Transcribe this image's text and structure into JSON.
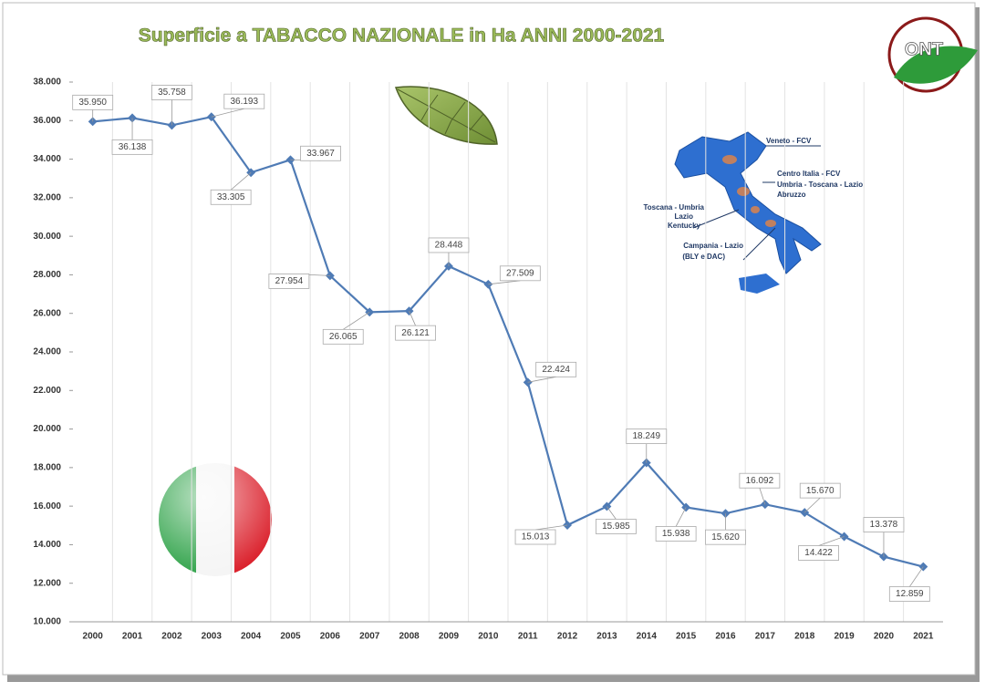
{
  "chart_data": {
    "type": "line",
    "title": "Superficie a TABACCO NAZIONALE in Ha ANNI 2000-2021",
    "categories": [
      "2000",
      "2001",
      "2002",
      "2003",
      "2004",
      "2005",
      "2006",
      "2007",
      "2008",
      "2009",
      "2010",
      "2011",
      "2012",
      "2013",
      "2014",
      "2015",
      "2016",
      "2017",
      "2018",
      "2019",
      "2020",
      "2021"
    ],
    "series": [
      {
        "name": "Superficie",
        "color": "#4f7bb5",
        "values": [
          35950,
          36138,
          35758,
          36193,
          33305,
          33967,
          27954,
          26065,
          26121,
          28448,
          27509,
          22424,
          15013,
          15985,
          18249,
          15938,
          15620,
          16092,
          15670,
          14422,
          13378,
          12859
        ],
        "value_labels": [
          "35.950",
          "36.138",
          "35.758",
          "36.193",
          "33.305",
          "33.967",
          "27.954",
          "26.065",
          "26.121",
          "28.448",
          "27.509",
          "22.424",
          "15.013",
          "15.985",
          "18.249",
          "15.938",
          "15.620",
          "16.092",
          "15.670",
          "14.422",
          "13.378",
          "12.859"
        ]
      }
    ],
    "ylim": [
      10000,
      38000
    ],
    "yticks": [
      {
        "value": 10000,
        "label": "10.000"
      },
      {
        "value": 12000,
        "label": "12.000"
      },
      {
        "value": 14000,
        "label": "14.000"
      },
      {
        "value": 16000,
        "label": "16.000"
      },
      {
        "value": 18000,
        "label": "18.000"
      },
      {
        "value": 20000,
        "label": "20.000"
      },
      {
        "value": 22000,
        "label": "22.000"
      },
      {
        "value": 24000,
        "label": "24.000"
      },
      {
        "value": 26000,
        "label": "26.000"
      },
      {
        "value": 28000,
        "label": "28.000"
      },
      {
        "value": 30000,
        "label": "30.000"
      },
      {
        "value": 32000,
        "label": "32.000"
      },
      {
        "value": 34000,
        "label": "34.000"
      },
      {
        "value": 36000,
        "label": "36.000"
      },
      {
        "value": 38000,
        "label": "38.000"
      }
    ],
    "grid": "x",
    "annotations": [
      "Veneto - FCV",
      "Centro Italia - FCV",
      "Umbria - Toscana - Lazio",
      "Abruzzo",
      "Toscana - Umbria",
      "Lazio",
      "Kentucky",
      "Campania - Lazio",
      "(BLY e DAC)",
      "ONT"
    ]
  }
}
